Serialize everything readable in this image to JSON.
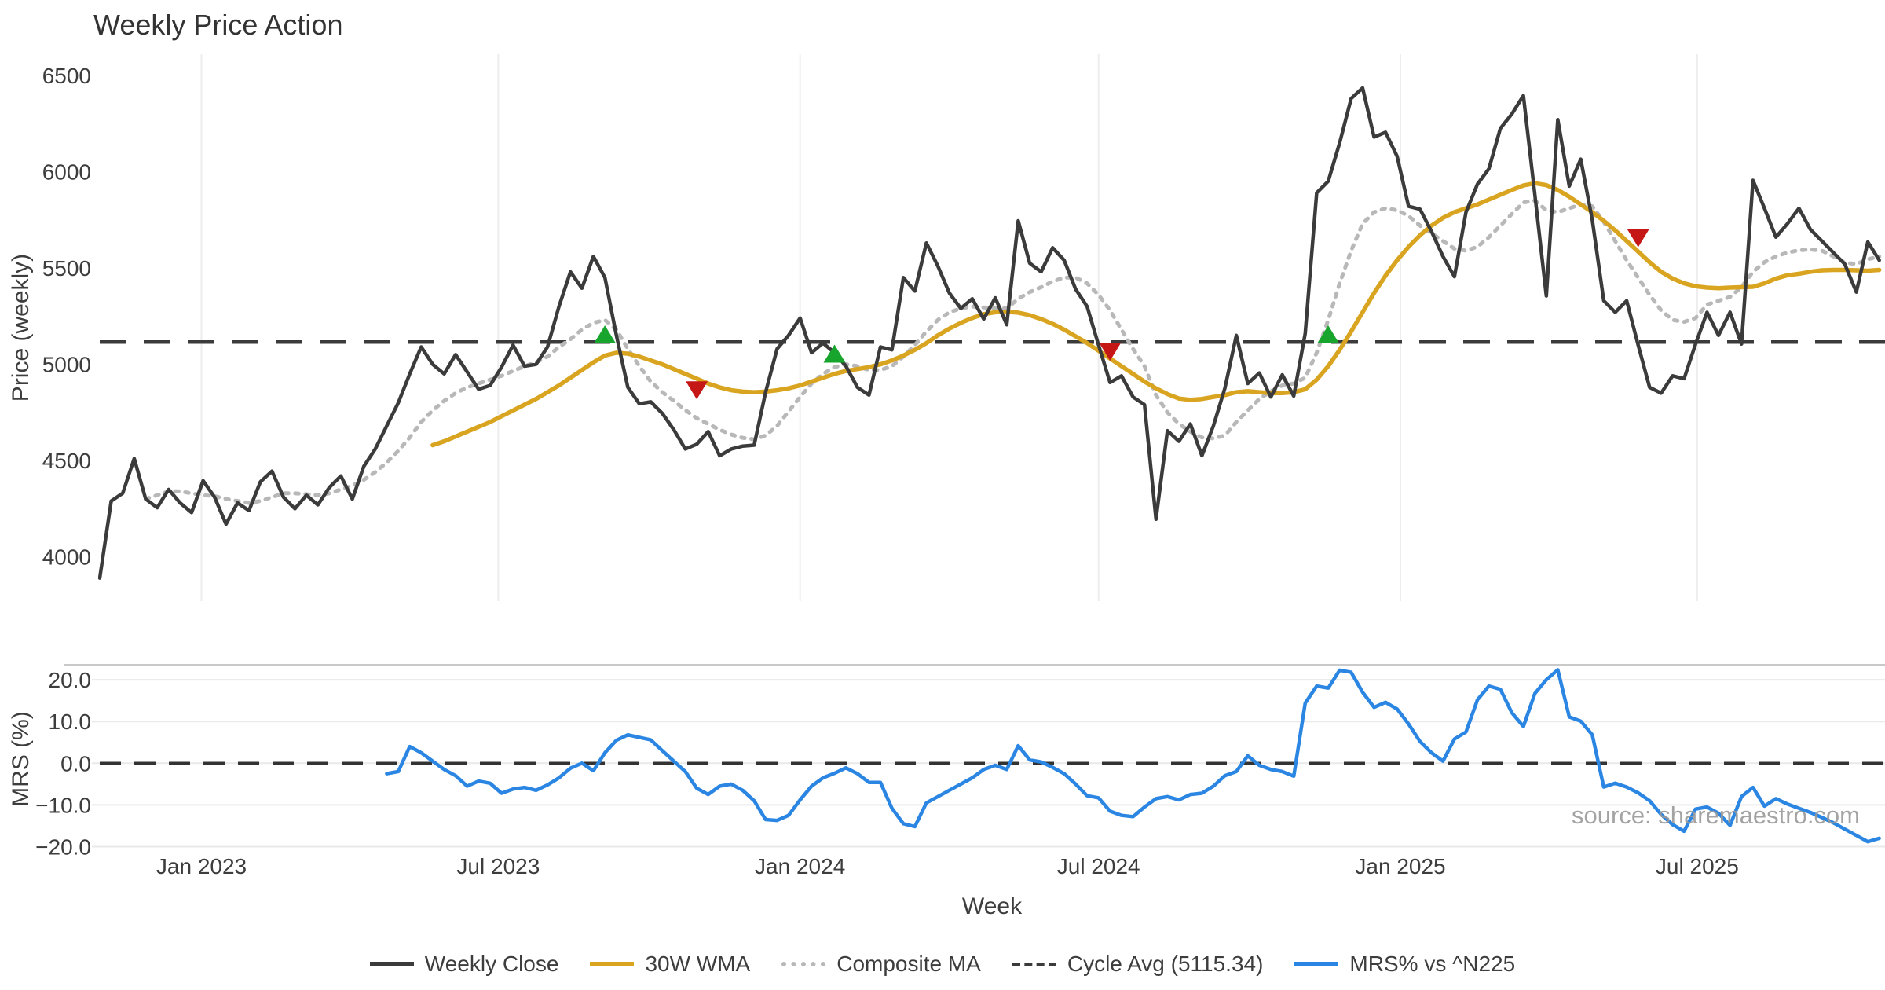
{
  "ui": {
    "title": "Weekly Price Action",
    "watermark": "source: sharemaestro.com",
    "legend": [
      {
        "label": "Weekly Close",
        "swatch": "solid",
        "color": "#3b3b3b"
      },
      {
        "label": "30W WMA",
        "swatch": "solid",
        "color": "#d9a420"
      },
      {
        "label": "Composite MA",
        "swatch": "dotted",
        "color": "#b8b8b8"
      },
      {
        "label": "Cycle Avg (5115.34)",
        "swatch": "dashed",
        "color": "#3b3b3b"
      },
      {
        "label": "MRS% vs ^N225",
        "swatch": "solid",
        "color": "#2a86e2"
      }
    ],
    "colors": {
      "close": "#3b3b3b",
      "wma": "#d9a420",
      "composite": "#b8b8b8",
      "cycle": "#3b3b3b",
      "mrs": "#2a86e2",
      "buy": "#17a52d",
      "sell": "#c61717",
      "grid": "#ededed",
      "lower_grid": "#e9e9e9",
      "spine": "#c9c9c9"
    }
  },
  "chart_data": [
    {
      "type": "line",
      "panel": "price",
      "title": "Weekly Price Action",
      "xlabel": "Week",
      "ylabel": "Price (weekly)",
      "x_description": "weekly closes, 156 weeks (~Nov 2022 - Oct 2025), x = week index",
      "xlim_weeks": [
        0,
        155.5
      ],
      "ylim": [
        3770,
        6610
      ],
      "yticks": [
        4000,
        4500,
        5000,
        5500,
        6000,
        6500
      ],
      "ytick_labels": [
        "4000",
        "4500",
        "5000",
        "5500",
        "6000",
        "6500"
      ],
      "xticks": [
        {
          "label": "Jan 2023",
          "week": 8.86
        },
        {
          "label": "Jul 2023",
          "week": 34.71
        },
        {
          "label": "Jan 2024",
          "week": 61.0
        },
        {
          "label": "Jul 2024",
          "week": 87.0
        },
        {
          "label": "Jan 2025",
          "week": 113.29
        },
        {
          "label": "Jul 2025",
          "week": 139.14
        }
      ],
      "cycle_avg": 5115.34,
      "series": [
        {
          "name": "Weekly Close",
          "style": "solid",
          "start_week": 0,
          "values": [
            3890,
            4290,
            4330,
            4510,
            4300,
            4255,
            4350,
            4280,
            4230,
            4395,
            4310,
            4170,
            4280,
            4240,
            4390,
            4445,
            4310,
            4250,
            4320,
            4270,
            4360,
            4420,
            4300,
            4470,
            4560,
            4680,
            4800,
            4950,
            5090,
            5000,
            4950,
            5050,
            4960,
            4870,
            4890,
            4985,
            5100,
            4990,
            5000,
            5090,
            5300,
            5480,
            5395,
            5560,
            5450,
            5150,
            4880,
            4795,
            4805,
            4745,
            4660,
            4560,
            4585,
            4650,
            4525,
            4560,
            4575,
            4580,
            4855,
            5080,
            5150,
            5240,
            5060,
            5110,
            5060,
            4990,
            4880,
            4840,
            5090,
            5075,
            5450,
            5380,
            5630,
            5510,
            5370,
            5290,
            5340,
            5235,
            5345,
            5205,
            5745,
            5525,
            5480,
            5605,
            5540,
            5390,
            5300,
            5100,
            4905,
            4940,
            4830,
            4790,
            4195,
            4655,
            4600,
            4690,
            4525,
            4680,
            4875,
            5150,
            4900,
            4955,
            4830,
            4945,
            4835,
            5160,
            5890,
            5950,
            6150,
            6380,
            6435,
            6180,
            6205,
            6080,
            5820,
            5805,
            5690,
            5560,
            5455,
            5790,
            5935,
            6015,
            6225,
            6300,
            6395,
            5880,
            5355,
            6270,
            5925,
            6065,
            5750,
            5330,
            5270,
            5330,
            5100,
            4880,
            4850,
            4940,
            4925,
            5105,
            5270,
            5150,
            5270,
            5105,
            5955,
            5810,
            5660,
            5730,
            5810,
            5700,
            5640,
            5580,
            5520,
            5375,
            5635,
            5540
          ]
        },
        {
          "name": "30W WMA",
          "style": "solid",
          "start_week": 29,
          "values": [
            4580,
            4600,
            4625,
            4650,
            4675,
            4700,
            4730,
            4760,
            4790,
            4820,
            4855,
            4890,
            4930,
            4970,
            5010,
            5045,
            5060,
            5055,
            5040,
            5020,
            5000,
            4975,
            4950,
            4925,
            4900,
            4880,
            4865,
            4858,
            4855,
            4858,
            4865,
            4875,
            4890,
            4910,
            4930,
            4950,
            4965,
            4975,
            4985,
            5000,
            5020,
            5045,
            5075,
            5110,
            5150,
            5185,
            5215,
            5240,
            5260,
            5270,
            5272,
            5268,
            5255,
            5235,
            5210,
            5180,
            5145,
            5110,
            5070,
            5030,
            4990,
            4950,
            4910,
            4875,
            4845,
            4822,
            4815,
            4820,
            4830,
            4840,
            4855,
            4860,
            4855,
            4850,
            4850,
            4855,
            4870,
            4920,
            4990,
            5075,
            5170,
            5270,
            5370,
            5460,
            5540,
            5610,
            5670,
            5720,
            5760,
            5790,
            5810,
            5830,
            5855,
            5880,
            5905,
            5928,
            5940,
            5930,
            5905,
            5870,
            5830,
            5790,
            5745,
            5695,
            5640,
            5585,
            5530,
            5480,
            5445,
            5420,
            5405,
            5398,
            5395,
            5398,
            5400,
            5402,
            5420,
            5445,
            5462,
            5470,
            5480,
            5488,
            5490,
            5490,
            5488,
            5486,
            5490
          ]
        },
        {
          "name": "Composite MA",
          "style": "dotted",
          "start_week": 4,
          "values": [
            4300,
            4320,
            4340,
            4340,
            4330,
            4320,
            4315,
            4300,
            4290,
            4280,
            4290,
            4310,
            4330,
            4330,
            4325,
            4320,
            4330,
            4350,
            4370,
            4400,
            4440,
            4490,
            4550,
            4620,
            4700,
            4760,
            4810,
            4850,
            4880,
            4900,
            4920,
            4940,
            4965,
            4990,
            5010,
            5040,
            5090,
            5130,
            5180,
            5215,
            5230,
            5180,
            5080,
            4990,
            4910,
            4855,
            4810,
            4762,
            4720,
            4690,
            4660,
            4635,
            4618,
            4610,
            4630,
            4680,
            4755,
            4830,
            4900,
            4950,
            4985,
            5000,
            4990,
            4970,
            4970,
            4990,
            5040,
            5100,
            5170,
            5230,
            5270,
            5290,
            5300,
            5295,
            5290,
            5290,
            5340,
            5375,
            5400,
            5430,
            5450,
            5450,
            5420,
            5360,
            5280,
            5180,
            5080,
            4990,
            4840,
            4750,
            4690,
            4650,
            4620,
            4615,
            4630,
            4700,
            4760,
            4820,
            4860,
            4890,
            4900,
            4930,
            5060,
            5230,
            5420,
            5590,
            5730,
            5790,
            5810,
            5800,
            5770,
            5720,
            5680,
            5640,
            5600,
            5590,
            5610,
            5660,
            5720,
            5780,
            5840,
            5850,
            5800,
            5790,
            5810,
            5830,
            5820,
            5740,
            5640,
            5540,
            5450,
            5360,
            5280,
            5230,
            5220,
            5240,
            5310,
            5330,
            5350,
            5400,
            5480,
            5530,
            5560,
            5580,
            5592,
            5596,
            5590,
            5560,
            5528,
            5520,
            5545,
            5560
          ]
        }
      ],
      "signals": {
        "buy": {
          "marker": "triangle-up",
          "points": [
            {
              "week": 44,
              "value": 5145
            },
            {
              "week": 64,
              "value": 5045
            },
            {
              "week": 107,
              "value": 5145
            }
          ]
        },
        "sell": {
          "marker": "triangle-down",
          "points": [
            {
              "week": 52,
              "value": 4875
            },
            {
              "week": 88,
              "value": 5075
            },
            {
              "week": 134,
              "value": 5665
            }
          ]
        }
      }
    },
    {
      "type": "line",
      "panel": "mrs",
      "ylabel": "MRS (%)",
      "ylim": [
        -21.6,
        23.6
      ],
      "yticks": [
        20,
        10,
        0,
        -10,
        -20
      ],
      "ytick_labels": [
        "20.0",
        "10.0",
        "0.0",
        "−10.0",
        "−20.0"
      ],
      "zero_line": 0,
      "series": [
        {
          "name": "MRS% vs ^N225",
          "style": "solid",
          "start_week": 25,
          "values": [
            -2.5,
            -2.0,
            4.0,
            2.5,
            0.5,
            -1.5,
            -3.0,
            -5.5,
            -4.3,
            -4.8,
            -7.2,
            -6.2,
            -5.8,
            -6.5,
            -5.2,
            -3.5,
            -1.2,
            0.0,
            -1.8,
            2.5,
            5.5,
            6.8,
            6.2,
            5.6,
            3.0,
            0.5,
            -2.0,
            -6.0,
            -7.5,
            -5.5,
            -5.0,
            -6.5,
            -9.0,
            -13.5,
            -13.7,
            -12.5,
            -8.8,
            -5.5,
            -3.5,
            -2.4,
            -1.1,
            -2.5,
            -4.6,
            -4.6,
            -10.8,
            -14.5,
            -15.2,
            -9.5,
            -8.0,
            -6.5,
            -5.0,
            -3.5,
            -1.5,
            -0.5,
            -1.5,
            4.2,
            0.8,
            0.3,
            -1.0,
            -2.5,
            -5.0,
            -7.8,
            -8.3,
            -11.5,
            -12.5,
            -12.8,
            -10.5,
            -8.5,
            -8.0,
            -8.8,
            -7.5,
            -7.2,
            -5.5,
            -3.0,
            -2.0,
            1.8,
            -0.5,
            -1.5,
            -2.0,
            -3.1,
            14.4,
            18.5,
            18.0,
            22.3,
            21.8,
            17.0,
            13.4,
            14.6,
            13.0,
            9.4,
            5.2,
            2.5,
            0.5,
            5.8,
            7.5,
            15.2,
            18.5,
            17.7,
            12.1,
            8.8,
            16.7,
            20.0,
            22.4,
            11.1,
            10.1,
            6.8,
            -5.7,
            -4.8,
            -5.7,
            -7.1,
            -9.0,
            -12.3,
            -14.7,
            -16.3,
            -11.0,
            -10.5,
            -12.0,
            -14.9,
            -8.0,
            -5.8,
            -10.3,
            -8.5,
            -9.8,
            -10.8,
            -11.8,
            -13.0,
            -14.3,
            -15.8,
            -17.3,
            -18.8,
            -18.0
          ]
        }
      ]
    }
  ]
}
